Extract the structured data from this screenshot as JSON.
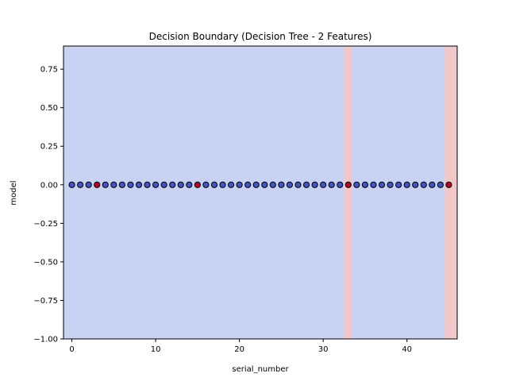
{
  "chart_data": {
    "type": "scatter",
    "title": "Decision Boundary (Decision Tree - 2 Features)",
    "xlabel": "serial_number",
    "ylabel": "model",
    "xlim": [
      -1,
      46
    ],
    "ylim": [
      -1.0,
      0.9
    ],
    "xticks": [
      0,
      10,
      20,
      30,
      40
    ],
    "xtick_labels": [
      "0",
      "10",
      "20",
      "30",
      "40"
    ],
    "yticks": [
      -1.0,
      -0.75,
      -0.5,
      -0.25,
      0.0,
      0.25,
      0.5,
      0.75
    ],
    "ytick_labels": [
      "−1.00",
      "−0.75",
      "−0.50",
      "−0.25",
      "0.00",
      "0.25",
      "0.50",
      "0.75"
    ],
    "grid": false,
    "legend": "none",
    "background_class": 0,
    "regions": [
      {
        "x_start": 32.5,
        "x_end": 33.5,
        "class": 1
      },
      {
        "x_start": 44.5,
        "x_end": 46,
        "class": 1
      }
    ],
    "points": {
      "x": [
        0,
        1,
        2,
        3,
        4,
        5,
        6,
        7,
        8,
        9,
        10,
        11,
        12,
        13,
        14,
        15,
        16,
        17,
        18,
        19,
        20,
        21,
        22,
        23,
        24,
        25,
        26,
        27,
        28,
        29,
        30,
        31,
        32,
        33,
        34,
        35,
        36,
        37,
        38,
        39,
        40,
        41,
        42,
        43,
        44,
        45
      ],
      "y": [
        0,
        0,
        0,
        0,
        0,
        0,
        0,
        0,
        0,
        0,
        0,
        0,
        0,
        0,
        0,
        0,
        0,
        0,
        0,
        0,
        0,
        0,
        0,
        0,
        0,
        0,
        0,
        0,
        0,
        0,
        0,
        0,
        0,
        0,
        0,
        0,
        0,
        0,
        0,
        0,
        0,
        0,
        0,
        0,
        0,
        0
      ],
      "class": [
        0,
        0,
        0,
        1,
        0,
        0,
        0,
        0,
        0,
        0,
        0,
        0,
        0,
        0,
        0,
        1,
        0,
        0,
        0,
        0,
        0,
        0,
        0,
        0,
        0,
        0,
        0,
        0,
        0,
        0,
        0,
        0,
        0,
        1,
        0,
        0,
        0,
        0,
        0,
        0,
        0,
        0,
        0,
        0,
        0,
        1
      ]
    },
    "colors": {
      "region_class0": "#c8d2f3",
      "region_class1": "#f0c8c9",
      "point_class0": "#4156c2",
      "point_class1": "#b40426",
      "point_edge": "#000000"
    }
  }
}
